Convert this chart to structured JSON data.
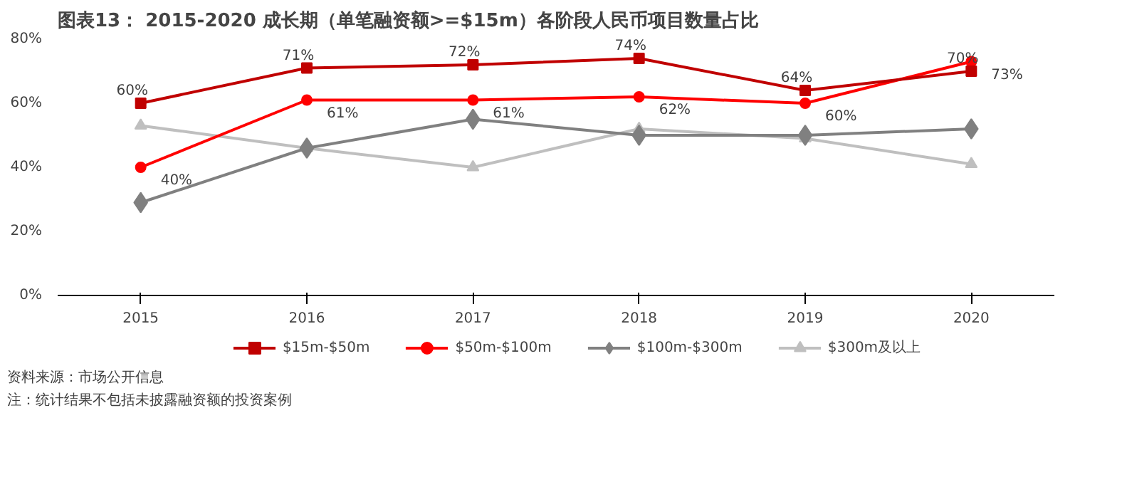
{
  "chart_data": {
    "type": "line",
    "title": "图表13： 2015-2020 成长期（单笔融资额>=$15m）各阶段人民币项目数量占比",
    "categories": [
      "2015",
      "2016",
      "2017",
      "2018",
      "2019",
      "2020"
    ],
    "series": [
      {
        "name": "$15m-$50m",
        "color": "#c00000",
        "marker": "square",
        "values": [
          60,
          71,
          72,
          74,
          64,
          70
        ],
        "value_labels": [
          "60%",
          "71%",
          "72%",
          "74%",
          "64%",
          "70%"
        ]
      },
      {
        "name": "$50m-$100m",
        "color": "#ff0000",
        "marker": "circle",
        "values": [
          40,
          61,
          61,
          62,
          60,
          73
        ],
        "value_labels": [
          "40%",
          "61%",
          "61%",
          "62%",
          "60%",
          "73%"
        ]
      },
      {
        "name": "$100m-$300m",
        "color": "#808080",
        "marker": "diamond",
        "values": [
          29,
          46,
          55,
          50,
          50,
          52
        ]
      },
      {
        "name": "$300m及以上",
        "color": "#bfbfbf",
        "marker": "triangle",
        "values": [
          53,
          46,
          40,
          52,
          49,
          41
        ]
      }
    ],
    "ylim": [
      0,
      80
    ],
    "yticks": [
      {
        "value": 0,
        "label": "0%"
      },
      {
        "value": 20,
        "label": "20%"
      },
      {
        "value": 40,
        "label": "40%"
      },
      {
        "value": 60,
        "label": "60%"
      },
      {
        "value": 80,
        "label": "80%"
      }
    ],
    "grid": false,
    "legend": "bottom",
    "annotations": [
      "资料来源：市场公开信息",
      "注：统计结果不包括未披露融资额的投资案例"
    ]
  }
}
